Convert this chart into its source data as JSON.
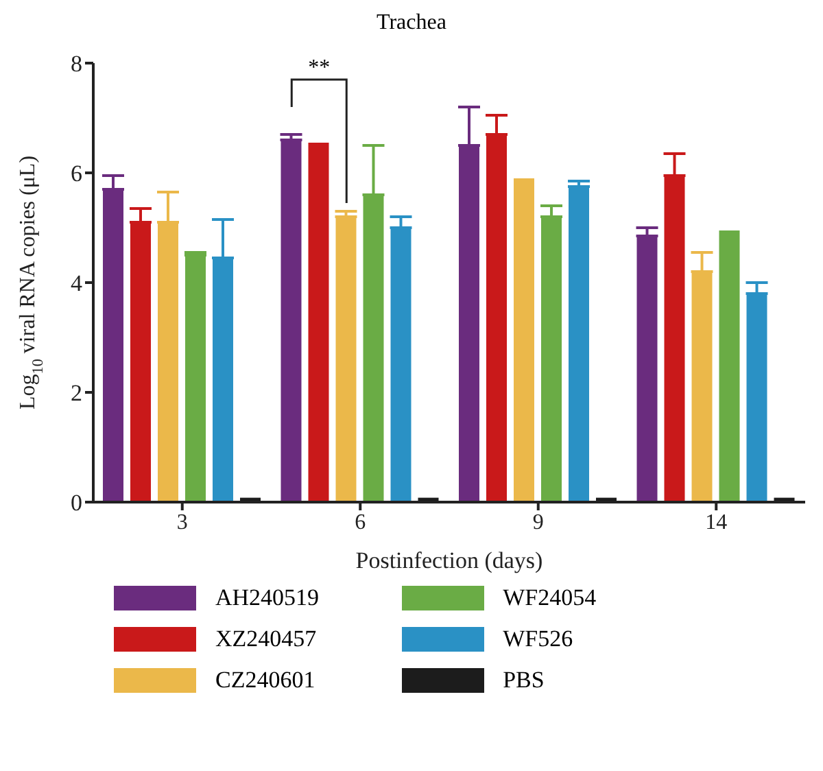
{
  "chart_data": {
    "type": "bar",
    "title": "Trachea",
    "xlabel": "Postinfection (days)",
    "ylabel": "Log$_{10}$ viral RNA copies (μL)",
    "categories": [
      "3",
      "6",
      "9",
      "14"
    ],
    "series": [
      {
        "name": "AH240519",
        "color": "#6a2c7e",
        "values": [
          5.7,
          6.6,
          6.5,
          4.85
        ],
        "errors": [
          [
            5.7,
            5.95
          ],
          [
            6.6,
            6.7
          ],
          [
            6.5,
            7.2
          ],
          [
            4.85,
            5.0
          ]
        ]
      },
      {
        "name": "XZ240457",
        "color": "#c9191a",
        "values": [
          5.1,
          6.55,
          6.7,
          5.95
        ],
        "errors": [
          [
            5.1,
            5.35
          ],
          null,
          [
            6.7,
            7.05
          ],
          [
            5.95,
            6.35
          ]
        ]
      },
      {
        "name": "CZ240601",
        "color": "#ebb84a",
        "values": [
          5.1,
          5.2,
          5.9,
          4.2
        ],
        "errors": [
          [
            5.1,
            5.65
          ],
          [
            5.2,
            5.3
          ],
          null,
          [
            4.2,
            4.55
          ]
        ]
      },
      {
        "name": "WF24054",
        "color": "#6aac45",
        "values": [
          4.5,
          5.6,
          5.2,
          4.95
        ],
        "errors": [
          [
            4.5,
            4.55
          ],
          [
            5.6,
            6.5
          ],
          [
            5.2,
            5.4
          ],
          null
        ]
      },
      {
        "name": "WF526",
        "color": "#2a91c5",
        "values": [
          4.45,
          5.0,
          5.75,
          3.8
        ],
        "errors": [
          [
            4.45,
            5.15
          ],
          [
            5.0,
            5.2
          ],
          [
            5.75,
            5.85
          ],
          [
            3.8,
            4.0
          ]
        ]
      },
      {
        "name": "PBS",
        "color": "#1c1c1c",
        "values": [
          0.08,
          0.08,
          0.08,
          0.08
        ]
      }
    ],
    "ylim": [
      0,
      8
    ],
    "yticks": [
      0,
      2,
      4,
      6,
      8
    ],
    "grid": false,
    "legend": "bottom",
    "annotations": [
      "**"
    ]
  }
}
